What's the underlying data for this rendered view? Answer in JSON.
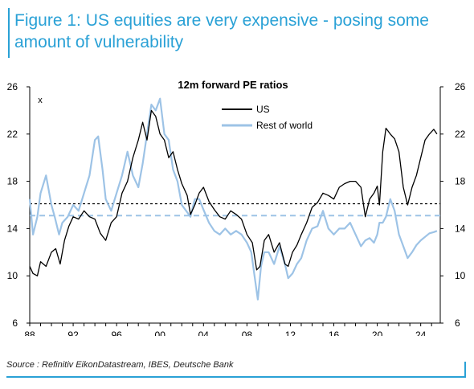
{
  "header": {
    "title": "Figure 1: US equities are very expensive - posing some amount of vulnerability"
  },
  "footer": {
    "source": "Source : Refinitiv EikonDatastream, IBES, Deutsche Bank"
  },
  "chart_data": {
    "type": "line",
    "title": "12m forward PE ratios",
    "unit_label": "x",
    "xlabel": "",
    "ylabel": "",
    "x_ticks": [
      "88",
      "92",
      "96",
      "00",
      "04",
      "08",
      "12",
      "16",
      "20",
      "24"
    ],
    "y_ticks": [
      6,
      10,
      14,
      18,
      22,
      26
    ],
    "ylim": [
      6,
      26
    ],
    "xlim": [
      1988,
      2025.8
    ],
    "grid": false,
    "legend_position": "top-center",
    "reference_lines": [
      {
        "value": 16.1,
        "style": "dotted",
        "color": "#000000"
      },
      {
        "value": 15.1,
        "style": "dashed",
        "color": "#9dc3e6"
      }
    ],
    "series": [
      {
        "name": "US",
        "color": "#000000",
        "x": [
          1988.0,
          1988.3,
          1988.7,
          1989.0,
          1989.5,
          1990.0,
          1990.4,
          1990.8,
          1991.2,
          1991.6,
          1992.0,
          1992.5,
          1993.0,
          1993.5,
          1994.0,
          1994.5,
          1995.0,
          1995.5,
          1996.0,
          1996.5,
          1997.0,
          1997.5,
          1998.0,
          1998.4,
          1998.8,
          1999.2,
          1999.6,
          2000.0,
          2000.4,
          2000.8,
          2001.2,
          2001.6,
          2002.0,
          2002.5,
          2002.8,
          2003.2,
          2003.6,
          2004.0,
          2004.5,
          2005.0,
          2005.5,
          2006.0,
          2006.5,
          2007.0,
          2007.5,
          2008.0,
          2008.5,
          2008.9,
          2009.2,
          2009.6,
          2010.0,
          2010.5,
          2011.0,
          2011.5,
          2011.8,
          2012.2,
          2012.6,
          2013.0,
          2013.5,
          2014.0,
          2014.5,
          2015.0,
          2015.5,
          2016.0,
          2016.5,
          2017.0,
          2017.5,
          2018.0,
          2018.5,
          2018.9,
          2019.3,
          2019.7,
          2020.0,
          2020.2,
          2020.5,
          2020.8,
          2021.2,
          2021.6,
          2022.0,
          2022.4,
          2022.8,
          2023.2,
          2023.6,
          2024.0,
          2024.4,
          2024.8,
          2025.2,
          2025.5
        ],
        "values": [
          10.8,
          10.2,
          10.0,
          11.2,
          10.8,
          12.0,
          12.3,
          11.0,
          13.0,
          14.2,
          15.0,
          14.8,
          15.5,
          15.0,
          14.8,
          13.6,
          13.0,
          14.5,
          15.0,
          17.0,
          18.0,
          20.0,
          21.5,
          23.0,
          21.5,
          24.0,
          23.5,
          22.0,
          21.5,
          20.0,
          20.5,
          19.0,
          17.8,
          16.8,
          15.2,
          16.0,
          17.0,
          17.5,
          16.3,
          15.6,
          15.0,
          14.8,
          15.5,
          15.2,
          14.8,
          13.5,
          12.8,
          10.5,
          10.8,
          13.0,
          13.5,
          12.0,
          12.8,
          11.0,
          10.8,
          12.0,
          12.6,
          13.5,
          14.5,
          15.8,
          16.2,
          17.0,
          16.8,
          16.5,
          17.5,
          17.8,
          18.0,
          18.0,
          17.5,
          15.0,
          16.5,
          17.0,
          17.6,
          16.0,
          20.5,
          22.5,
          22.0,
          21.6,
          20.5,
          17.5,
          16.0,
          17.5,
          18.5,
          20.0,
          21.5,
          22.0,
          22.4,
          22.0
        ]
      },
      {
        "name": "Rest of world",
        "color": "#9dc3e6",
        "x": [
          1988.0,
          1988.3,
          1988.7,
          1989.0,
          1989.5,
          1990.0,
          1990.3,
          1990.7,
          1991.0,
          1991.5,
          1992.0,
          1992.5,
          1993.0,
          1993.5,
          1994.0,
          1994.3,
          1994.7,
          1995.0,
          1995.5,
          1996.0,
          1996.5,
          1997.0,
          1997.5,
          1998.0,
          1998.4,
          1998.8,
          1999.2,
          1999.6,
          2000.0,
          2000.4,
          2000.8,
          2001.2,
          2001.6,
          2002.0,
          2002.4,
          2002.8,
          2003.2,
          2003.6,
          2004.0,
          2004.5,
          2005.0,
          2005.5,
          2006.0,
          2006.5,
          2007.0,
          2007.5,
          2008.0,
          2008.4,
          2008.7,
          2009.0,
          2009.3,
          2009.6,
          2010.0,
          2010.5,
          2011.0,
          2011.5,
          2011.8,
          2012.2,
          2012.6,
          2013.0,
          2013.5,
          2014.0,
          2014.5,
          2015.0,
          2015.5,
          2016.0,
          2016.5,
          2017.0,
          2017.5,
          2018.0,
          2018.5,
          2018.9,
          2019.3,
          2019.7,
          2020.0,
          2020.2,
          2020.5,
          2020.8,
          2021.2,
          2021.6,
          2022.0,
          2022.4,
          2022.8,
          2023.2,
          2023.6,
          2024.0,
          2024.4,
          2024.8,
          2025.2,
          2025.5
        ],
        "values": [
          16.5,
          13.5,
          15.0,
          17.0,
          18.5,
          16.0,
          15.0,
          13.5,
          14.5,
          15.0,
          16.0,
          15.5,
          17.0,
          18.5,
          21.5,
          21.8,
          19.0,
          16.5,
          15.5,
          17.0,
          18.5,
          20.5,
          18.5,
          17.5,
          19.5,
          22.0,
          24.5,
          24.0,
          25.0,
          22.0,
          21.5,
          19.0,
          18.0,
          16.0,
          15.5,
          15.0,
          16.5,
          16.5,
          15.6,
          14.5,
          13.8,
          13.5,
          14.0,
          13.5,
          13.8,
          13.5,
          12.8,
          12.0,
          10.0,
          8.0,
          10.8,
          12.0,
          12.0,
          11.0,
          12.5,
          11.0,
          9.8,
          10.2,
          11.0,
          11.5,
          13.0,
          14.0,
          14.2,
          15.5,
          14.0,
          13.5,
          14.0,
          14.0,
          14.5,
          13.5,
          12.5,
          13.0,
          13.2,
          12.8,
          13.5,
          14.5,
          14.5,
          15.0,
          16.5,
          15.5,
          13.5,
          12.5,
          11.5,
          12.0,
          12.6,
          13.0,
          13.3,
          13.6,
          13.7,
          13.8
        ]
      }
    ]
  }
}
